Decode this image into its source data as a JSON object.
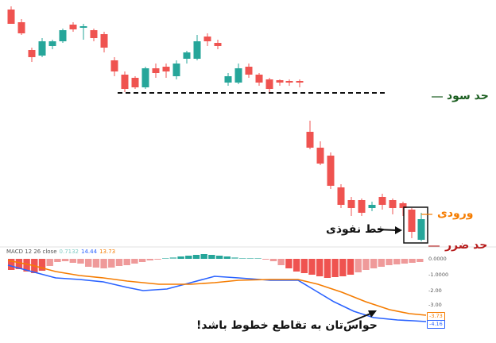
{
  "labels": {
    "take_profit": "حد سود",
    "entry": "ورودی",
    "stop_loss": "حد ضرر",
    "breakout_line": "خط نفوذی",
    "warning": "حواس‌تان به تقاطع خطوط باشد!"
  },
  "macd": {
    "legend_name": "MACD 12 26 close",
    "legend_hist": "0.7132",
    "legend_macd": "14.44",
    "legend_signal": "13.73",
    "axis_ticks": [
      "0.0000",
      "-1.0000",
      "-2.00",
      "-3.00",
      "-4.00"
    ],
    "macd_tag": "-4.16",
    "signal_tag": "-3.73"
  },
  "colors": {
    "up": "#26a69a",
    "down": "#ef5350",
    "take_profit": "#1b5e20",
    "entry": "#f57c00",
    "stop_loss": "#b71c1c",
    "macd_line": "#2962ff",
    "signal_line": "#f57c00",
    "hist_neg": "#ef9a9a",
    "hist_pos": "#80cbc4"
  }
}
